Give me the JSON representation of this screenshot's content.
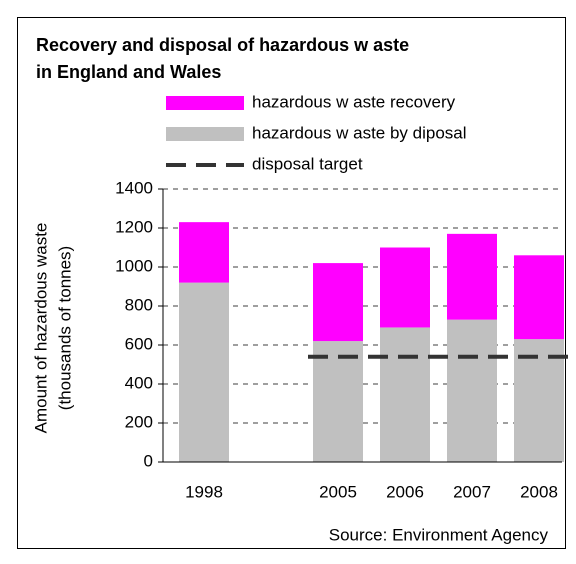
{
  "chart_data": {
    "type": "bar",
    "stacked": true,
    "title": [
      "Recovery and disposal of hazardous w aste",
      "in England and Wales"
    ],
    "y_label": [
      "Amount of hazardous waste",
      "(thousands of tonnes)"
    ],
    "source": "Source: Environment Agency",
    "categories": [
      "1998",
      null,
      "2005",
      "2006",
      "2007",
      "2008"
    ],
    "series": [
      {
        "name": "hazardous w aste recovery",
        "color": "#ff00ff",
        "values": [
          310,
          null,
          400,
          410,
          440,
          430
        ]
      },
      {
        "name": "hazardous w aste by diposal",
        "color": "#c0c0c0",
        "values": [
          920,
          null,
          620,
          690,
          730,
          630
        ]
      },
      {
        "name": "disposal target",
        "color": "#333333",
        "type": "line",
        "dashed": true,
        "values": [
          null,
          null,
          540,
          540,
          540,
          540
        ]
      }
    ],
    "ylim": [
      0,
      1400
    ],
    "yticks": [
      0,
      200,
      400,
      600,
      800,
      1000,
      1200,
      1400
    ],
    "grid": true
  }
}
